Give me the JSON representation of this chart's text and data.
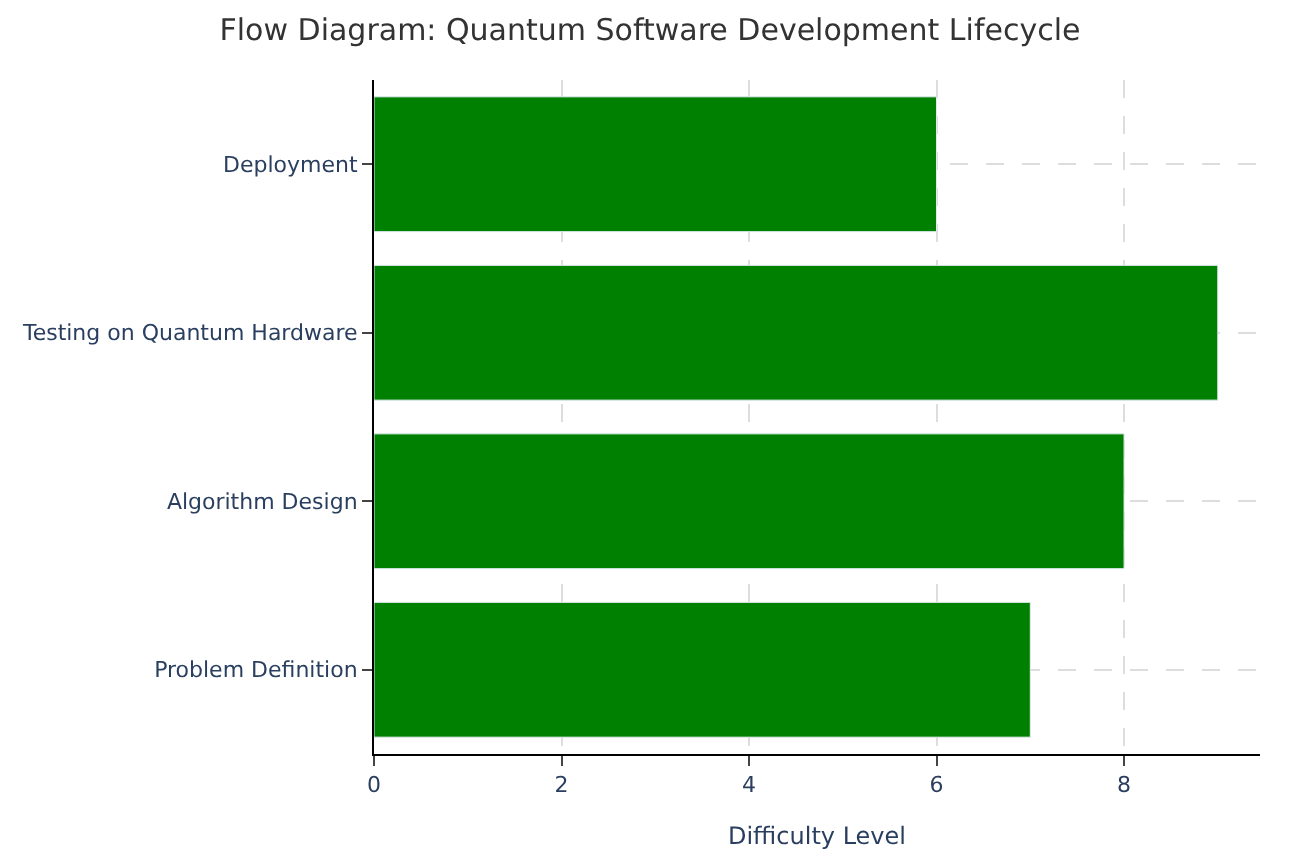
{
  "chart_data": {
    "type": "bar",
    "orientation": "horizontal",
    "title": "Flow Diagram: Quantum Software Development Lifecycle",
    "xlabel": "Difficulty Level",
    "categories": [
      "Deployment",
      "Testing on Quantum Hardware",
      "Algorithm Design",
      "Problem Definition"
    ],
    "values": [
      6,
      9,
      8,
      7
    ],
    "color": "#008000",
    "xlim": [
      0,
      9.45
    ],
    "xticks": [
      0,
      2,
      4,
      6,
      8
    ],
    "grid": true
  }
}
